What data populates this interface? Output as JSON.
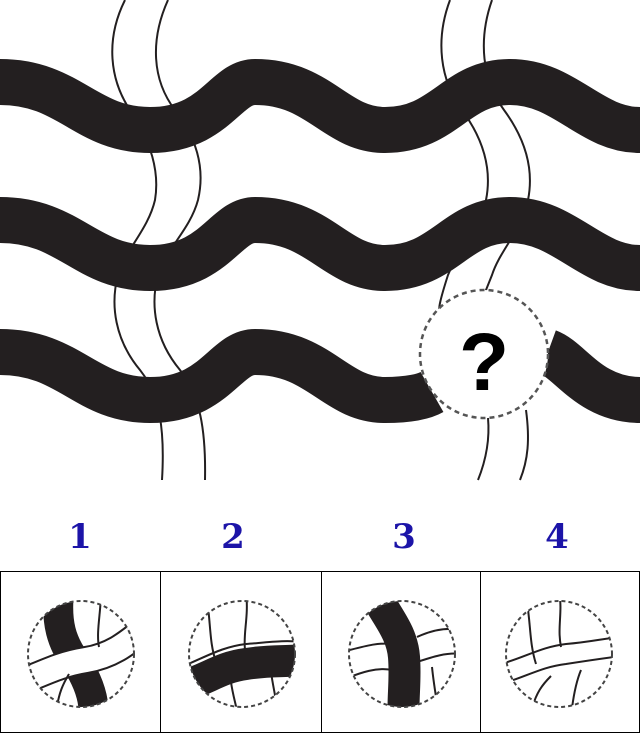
{
  "puzzle": {
    "question_mark": "?"
  },
  "options": [
    {
      "number": "1",
      "description": "black-band-behind-white-band"
    },
    {
      "number": "2",
      "description": "black-band-in-front"
    },
    {
      "number": "3",
      "description": "black-vertical-band"
    },
    {
      "number": "4",
      "description": "white-band-only"
    }
  ],
  "colors": {
    "wave": "#231f20",
    "thread": "#231f20",
    "option_number": "#1c14a8",
    "background": "#ffffff"
  }
}
